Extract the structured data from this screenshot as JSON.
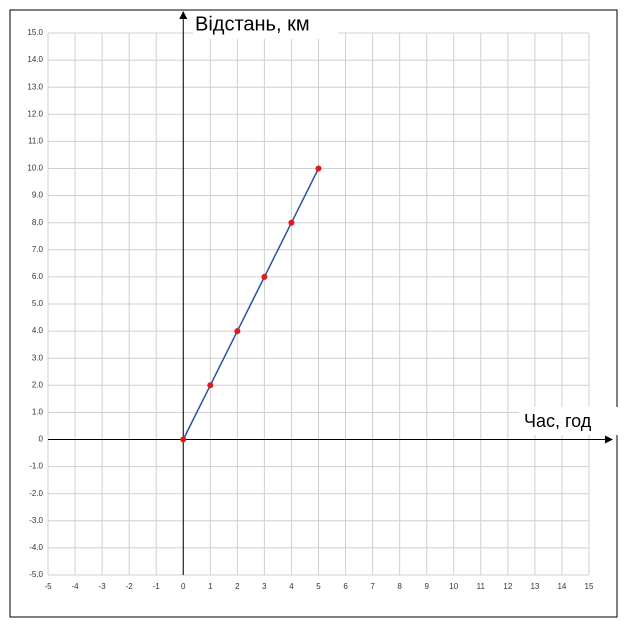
{
  "chart_data": {
    "type": "line",
    "x_label": "Час, год",
    "y_label": "Відстань, км",
    "x": [
      0,
      1,
      2,
      3,
      4,
      5
    ],
    "series": [
      {
        "values": [
          0,
          2,
          4,
          6,
          8,
          10
        ],
        "color": "#2f4f9f",
        "marker_color": "#e01a1a"
      }
    ],
    "xlim": [
      -5,
      15
    ],
    "ylim": [
      -5,
      15
    ],
    "xticks": [
      -5,
      -4,
      -3,
      -2,
      -1,
      0,
      1,
      2,
      3,
      4,
      5,
      6,
      7,
      8,
      9,
      10,
      11,
      12,
      13,
      14,
      15
    ],
    "yticks": [
      {
        "value": -5,
        "label": "-5.0"
      },
      {
        "value": -4,
        "label": "-4.0"
      },
      {
        "value": -3,
        "label": "-3.0"
      },
      {
        "value": -2,
        "label": "-2.0"
      },
      {
        "value": -1,
        "label": "-1.0"
      },
      0,
      {
        "value": 1,
        "label": "1.0"
      },
      {
        "value": 2,
        "label": "2.0"
      },
      {
        "value": 3,
        "label": "3.0"
      },
      {
        "value": 4,
        "label": "4.0"
      },
      {
        "value": 5,
        "label": "5.0"
      },
      {
        "value": 6,
        "label": "6.0"
      },
      {
        "value": 7,
        "label": "7.0"
      },
      {
        "value": 8,
        "label": "8.0"
      },
      {
        "value": 9,
        "label": "9.0"
      },
      {
        "value": 10,
        "label": "10.0"
      },
      {
        "value": 11,
        "label": "11.0"
      },
      {
        "value": 12,
        "label": "12.0"
      },
      {
        "value": 13,
        "label": "13.0"
      },
      {
        "value": 14,
        "label": "14.0"
      },
      {
        "value": 15,
        "label": "15.0"
      }
    ],
    "grid": true
  }
}
